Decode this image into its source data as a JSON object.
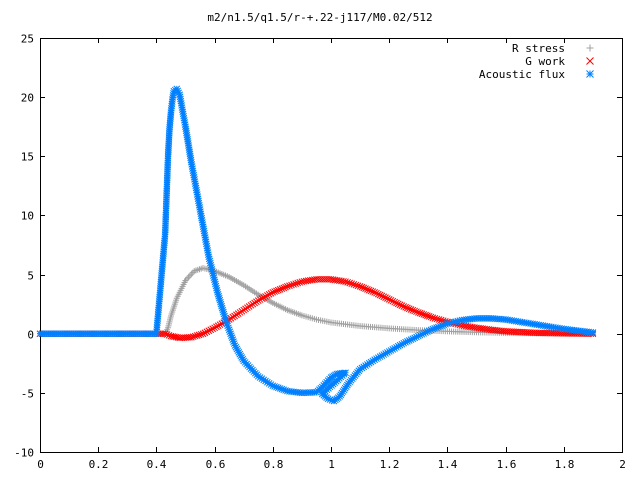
{
  "chart_data": {
    "type": "scatter",
    "title": "m2/n1.5/q1.5/r-+.22-j117/M0.02/512",
    "xlabel": "",
    "ylabel": "",
    "xlim": [
      0,
      2
    ],
    "ylim": [
      -10,
      25
    ],
    "xticks": [
      "0",
      "0.2",
      "0.4",
      "0.6",
      "0.8",
      "1",
      "1.2",
      "1.4",
      "1.6",
      "1.8",
      "2"
    ],
    "yticks": [
      "-10",
      "-5",
      "0",
      "5",
      "10",
      "15",
      "20",
      "25"
    ],
    "grid": false,
    "legend_position": "top-right",
    "series": [
      {
        "name": "R stress",
        "marker": "plus",
        "color": "#a0a0a0",
        "points": [
          [
            0,
            0
          ],
          [
            0.1,
            0
          ],
          [
            0.2,
            0
          ],
          [
            0.3,
            0
          ],
          [
            0.4,
            0
          ],
          [
            0.43,
            0
          ],
          [
            0.44,
            0.5
          ],
          [
            0.45,
            1.5
          ],
          [
            0.47,
            3.0
          ],
          [
            0.5,
            4.5
          ],
          [
            0.53,
            5.3
          ],
          [
            0.56,
            5.55
          ],
          [
            0.6,
            5.3
          ],
          [
            0.65,
            4.8
          ],
          [
            0.7,
            4.1
          ],
          [
            0.75,
            3.3
          ],
          [
            0.8,
            2.6
          ],
          [
            0.85,
            2.0
          ],
          [
            0.9,
            1.55
          ],
          [
            0.95,
            1.2
          ],
          [
            1.0,
            0.95
          ],
          [
            1.1,
            0.65
          ],
          [
            1.2,
            0.45
          ],
          [
            1.3,
            0.3
          ],
          [
            1.4,
            0.2
          ],
          [
            1.5,
            0.12
          ],
          [
            1.6,
            0.07
          ],
          [
            1.7,
            0.04
          ],
          [
            1.8,
            0.02
          ],
          [
            1.9,
            0.0
          ]
        ]
      },
      {
        "name": "G work",
        "marker": "cross",
        "color": "#ff0000",
        "points": [
          [
            0,
            0
          ],
          [
            0.1,
            0
          ],
          [
            0.2,
            0
          ],
          [
            0.3,
            0
          ],
          [
            0.4,
            0
          ],
          [
            0.43,
            0
          ],
          [
            0.45,
            -0.2
          ],
          [
            0.48,
            -0.35
          ],
          [
            0.52,
            -0.3
          ],
          [
            0.56,
            0.0
          ],
          [
            0.6,
            0.5
          ],
          [
            0.65,
            1.2
          ],
          [
            0.7,
            2.0
          ],
          [
            0.75,
            2.8
          ],
          [
            0.8,
            3.5
          ],
          [
            0.85,
            4.0
          ],
          [
            0.9,
            4.4
          ],
          [
            0.95,
            4.6
          ],
          [
            1.0,
            4.6
          ],
          [
            1.05,
            4.4
          ],
          [
            1.1,
            4.0
          ],
          [
            1.15,
            3.5
          ],
          [
            1.2,
            2.9
          ],
          [
            1.25,
            2.3
          ],
          [
            1.3,
            1.8
          ],
          [
            1.35,
            1.35
          ],
          [
            1.4,
            1.0
          ],
          [
            1.45,
            0.7
          ],
          [
            1.5,
            0.5
          ],
          [
            1.55,
            0.33
          ],
          [
            1.6,
            0.2
          ],
          [
            1.7,
            0.08
          ],
          [
            1.8,
            0.03
          ],
          [
            1.9,
            0.0
          ]
        ]
      },
      {
        "name": "Acoustic flux",
        "marker": "star",
        "color": "#0080ff",
        "points": [
          [
            0,
            0
          ],
          [
            0.1,
            0
          ],
          [
            0.2,
            0
          ],
          [
            0.3,
            0
          ],
          [
            0.4,
            0
          ],
          [
            0.43,
            8.4
          ],
          [
            0.44,
            15.0
          ],
          [
            0.445,
            17.3
          ],
          [
            0.45,
            18.7
          ],
          [
            0.455,
            19.8
          ],
          [
            0.46,
            20.5
          ],
          [
            0.47,
            20.7
          ],
          [
            0.48,
            20.2
          ],
          [
            0.5,
            17.5
          ],
          [
            0.52,
            14.5
          ],
          [
            0.55,
            10.5
          ],
          [
            0.58,
            6.5
          ],
          [
            0.61,
            3.5
          ],
          [
            0.64,
            1.0
          ],
          [
            0.67,
            -1.0
          ],
          [
            0.7,
            -2.3
          ],
          [
            0.75,
            -3.6
          ],
          [
            0.8,
            -4.4
          ],
          [
            0.85,
            -4.85
          ],
          [
            0.9,
            -5.0
          ],
          [
            0.95,
            -4.95
          ],
          [
            0.97,
            -4.5
          ],
          [
            1.0,
            -3.7
          ],
          [
            1.02,
            -3.4
          ],
          [
            1.05,
            -3.3
          ],
          [
            0.97,
            -5.1
          ],
          [
            0.99,
            -5.5
          ],
          [
            1.01,
            -5.7
          ],
          [
            1.03,
            -5.3
          ],
          [
            1.06,
            -4.2
          ],
          [
            1.1,
            -3.0
          ],
          [
            1.15,
            -2.2
          ],
          [
            1.2,
            -1.5
          ],
          [
            1.25,
            -0.8
          ],
          [
            1.3,
            -0.2
          ],
          [
            1.35,
            0.4
          ],
          [
            1.4,
            0.85
          ],
          [
            1.45,
            1.15
          ],
          [
            1.5,
            1.3
          ],
          [
            1.55,
            1.3
          ],
          [
            1.6,
            1.2
          ],
          [
            1.65,
            1.0
          ],
          [
            1.7,
            0.8
          ],
          [
            1.75,
            0.6
          ],
          [
            1.8,
            0.4
          ],
          [
            1.85,
            0.25
          ],
          [
            1.9,
            0.1
          ]
        ]
      }
    ]
  }
}
